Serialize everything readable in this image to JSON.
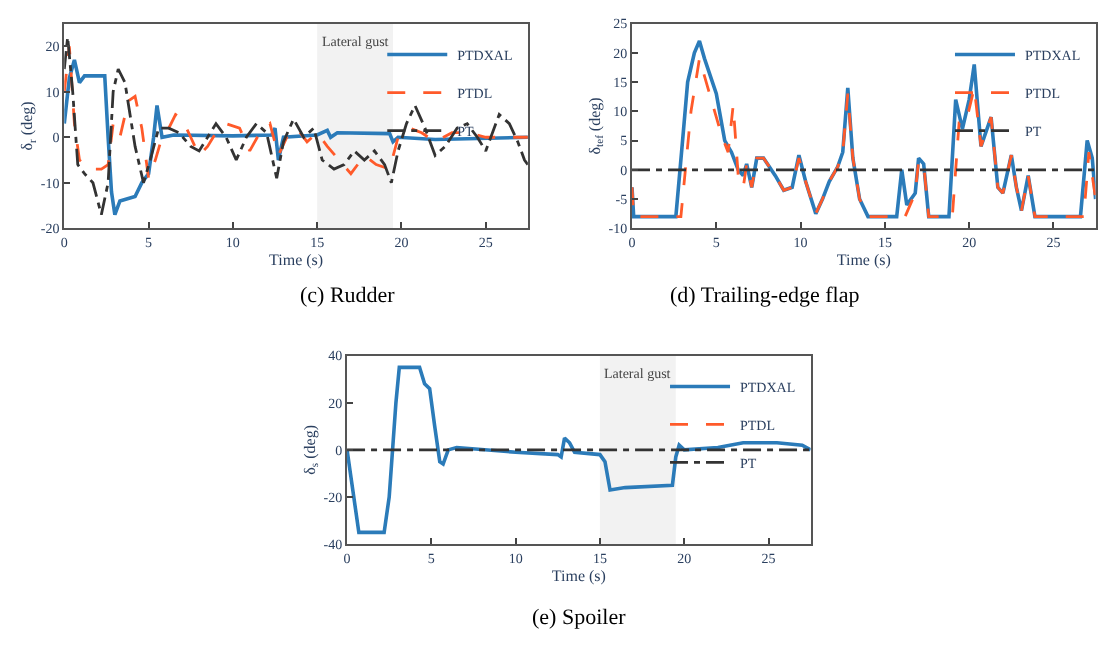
{
  "chart_data": [
    {
      "type": "line",
      "title": "(c) Rudder",
      "xlabel": "Time (s)",
      "ylabel": "δ$_{r}$ (deg)",
      "xlim": [
        0,
        27.5
      ],
      "xticks": [
        0,
        5,
        10,
        15,
        20,
        25
      ],
      "ylim": [
        -20,
        25
      ],
      "yticks": [
        -20,
        -10,
        0,
        10,
        20
      ],
      "grid": false,
      "legend": "top right",
      "bands": [
        {
          "axis": "x",
          "from": 15,
          "to": 19.5,
          "label": "Lateral gust",
          "color": "#f2f2f2"
        }
      ],
      "series": [
        {
          "name": "PTDXAL",
          "color": "#2b7bb9",
          "line_style": "solid",
          "x": [
            0,
            0.3,
            0.6,
            0.9,
            1.2,
            2.4,
            2.6,
            2.8,
            3.0,
            3.3,
            4.2,
            4.6,
            5.0,
            5.3,
            5.5,
            5.8,
            6.5,
            10,
            12.3,
            12.5,
            12.7,
            13,
            15,
            15.6,
            15.8,
            16.2,
            19.3,
            19.5,
            19.8,
            22,
            27.5
          ],
          "values": [
            3,
            13,
            17,
            12,
            13.5,
            13.5,
            0,
            -12,
            -17,
            -14,
            -13,
            -10,
            -8,
            0,
            7,
            0,
            0.5,
            0.3,
            0.5,
            2,
            -5,
            0,
            0.5,
            1.5,
            0,
            1,
            0.8,
            -1,
            0,
            -0.5,
            0
          ]
        },
        {
          "name": "PTDL",
          "color": "#ff5a2a",
          "line_style": "dashed",
          "x": [
            0,
            0.3,
            0.6,
            0.9,
            1.5,
            2.2,
            2.6,
            2.9,
            3.3,
            3.8,
            4.2,
            4.6,
            5.0,
            5.4,
            5.8,
            6.2,
            6.6,
            7.0,
            7.5,
            8,
            8.5,
            9,
            9.6,
            10.4,
            11,
            11.6,
            12.2,
            12.7,
            13.2,
            13.8,
            14.4,
            15,
            15.6,
            16.3,
            17.0,
            17.8,
            18.5,
            19.3,
            19.8,
            20.5,
            21.2,
            22,
            23,
            24,
            25,
            27.5
          ],
          "values": [
            10,
            20,
            3,
            -5,
            -7,
            -7,
            -6,
            3,
            0,
            8,
            9,
            2,
            -9,
            -5,
            0,
            2,
            5,
            4,
            0,
            -4,
            -2,
            1,
            3,
            2,
            -3,
            1,
            3,
            -4,
            0,
            2,
            -1,
            1,
            -2,
            -5,
            -8,
            -4,
            -6,
            -7,
            0,
            2,
            1,
            -1,
            1,
            1,
            0,
            0
          ]
        },
        {
          "name": "PT",
          "color": "#333333",
          "line_style": "dashdot",
          "x": [
            0,
            0.2,
            0.5,
            0.8,
            1.2,
            1.7,
            2.2,
            2.6,
            2.9,
            3.2,
            3.6,
            4.2,
            4.7,
            5.1,
            5.6,
            6.2,
            6.8,
            7.5,
            8,
            8.5,
            9,
            9.6,
            10.2,
            10.8,
            11.4,
            12.0,
            12.6,
            13.0,
            13.6,
            14.2,
            14.8,
            15.3,
            16,
            16.6,
            17.2,
            17.8,
            18.4,
            19.0,
            19.4,
            19.8,
            20.3,
            20.8,
            21.4,
            22,
            22.6,
            23.3,
            23.9,
            24.5,
            25.0,
            25.8,
            26.4,
            26.9,
            27.3,
            27.5
          ],
          "values": [
            15,
            22,
            10,
            -6,
            -8,
            -10,
            -17,
            -10,
            10,
            15,
            12,
            -2,
            -10,
            -5,
            2,
            2,
            1,
            -2,
            -3,
            0,
            3,
            0,
            -5,
            0,
            3,
            1,
            -9,
            -1,
            4,
            0,
            2,
            -5,
            -7,
            -6,
            -3,
            -5,
            -3,
            -6,
            -10,
            -3,
            3,
            7,
            2,
            -4,
            -2,
            2,
            3,
            0,
            -3,
            5,
            3,
            -1,
            -5,
            -6
          ]
        }
      ]
    },
    {
      "type": "line",
      "title": "(d) Trailing-edge flap",
      "xlabel": "Time (s)",
      "ylabel": "δ$_{tef}$ (deg)",
      "xlim": [
        0,
        27.5
      ],
      "xticks": [
        0,
        5,
        10,
        15,
        20,
        25
      ],
      "ylim": [
        -10,
        25
      ],
      "yticks": [
        -10,
        -5,
        0,
        5,
        10,
        15,
        20,
        25
      ],
      "grid": false,
      "legend": "top right",
      "series": [
        {
          "name": "PTDXAL",
          "color": "#2b7bb9",
          "line_style": "solid",
          "x": [
            0,
            0.1,
            2.6,
            3.0,
            3.3,
            3.7,
            4.0,
            4.3,
            5.0,
            5.5,
            5.9,
            6.3,
            6.6,
            6.8,
            7.1,
            7.4,
            7.8,
            8.5,
            9.0,
            9.5,
            9.9,
            10.3,
            10.9,
            11.3,
            11.7,
            12.2,
            12.5,
            12.8,
            13.1,
            13.5,
            14,
            15.7,
            16.0,
            16.3,
            16.8,
            17.0,
            17.3,
            17.6,
            18.8,
            19.2,
            19.6,
            20.0,
            20.3,
            20.7,
            21.3,
            21.7,
            22.0,
            22.5,
            22.8,
            23.1,
            23.5,
            23.9,
            26.6,
            27.0,
            27.3,
            27.5
          ],
          "values": [
            -3,
            -8,
            -8,
            5,
            15,
            20,
            22,
            19,
            13,
            5,
            3,
            0,
            -1,
            1,
            -3,
            2,
            2,
            -1,
            -3.5,
            -3,
            2.5,
            -2,
            -7.5,
            -5,
            -2,
            0.5,
            3,
            14,
            2,
            -5,
            -8,
            -8,
            0,
            -6,
            -4,
            2,
            1,
            -8,
            -8,
            12,
            7,
            12,
            18,
            4,
            9,
            -3,
            -4,
            2.5,
            -3,
            -7,
            -1,
            -8,
            -8,
            5,
            2,
            -5
          ]
        },
        {
          "name": "PTDL",
          "color": "#ff5a2a",
          "line_style": "dashed",
          "x": [
            0,
            0.1,
            2.9,
            3.5,
            4.0,
            4.5,
            5.3,
            5.7,
            6.0,
            6.3,
            6.6,
            6.8,
            7.1,
            7.4,
            7.8,
            8.5,
            9.0,
            9.5,
            9.9,
            10.3,
            10.9,
            11.3,
            11.7,
            12.2,
            12.5,
            12.8,
            13.1,
            13.5,
            14,
            16.2,
            16.5,
            16.8,
            17.0,
            17.3,
            17.6,
            19.0,
            19.4,
            19.8,
            20.3,
            20.7,
            21.3,
            21.7,
            22.0,
            22.5,
            22.8,
            23.1,
            23.5,
            23.9,
            26.8,
            27.1,
            27.5
          ],
          "values": [
            -3,
            -8,
            -8,
            10,
            19,
            14,
            6,
            3,
            11,
            -1,
            -3,
            1,
            -3,
            2,
            2,
            -1,
            -3.5,
            -3,
            2,
            -2,
            -7.5,
            -5,
            -2,
            0.5,
            3,
            13,
            2,
            -5,
            -8,
            -8,
            -6,
            -4,
            1.5,
            1,
            -8,
            -8,
            8,
            8,
            14,
            4,
            9,
            -3,
            -4,
            2.5,
            -3,
            -7,
            -1,
            -8,
            -8,
            3,
            -5
          ]
        },
        {
          "name": "PT",
          "color": "#333333",
          "line_style": "dashdot",
          "x": [
            0,
            27.5
          ],
          "values": [
            0,
            0
          ]
        }
      ]
    },
    {
      "type": "line",
      "title": "(e) Spoiler",
      "xlabel": "Time (s)",
      "ylabel": "δ$_{s}$ (deg)",
      "xlim": [
        0,
        27.5
      ],
      "xticks": [
        0,
        5,
        10,
        15,
        20,
        25
      ],
      "ylim": [
        -40,
        40
      ],
      "yticks": [
        -40,
        -20,
        0,
        20,
        40
      ],
      "grid": false,
      "legend": "top right",
      "bands": [
        {
          "axis": "x",
          "from": 15,
          "to": 19.5,
          "label": "Lateral gust",
          "color": "#f2f2f2"
        }
      ],
      "series": [
        {
          "name": "PTDXAL",
          "color": "#2b7bb9",
          "line_style": "solid",
          "x": [
            0,
            0.2,
            0.7,
            2.2,
            2.5,
            2.9,
            3.1,
            4.3,
            4.6,
            4.9,
            5.2,
            5.5,
            5.7,
            6.0,
            6.5,
            10,
            12.5,
            12.7,
            12.9,
            13.2,
            13.5,
            15.0,
            15.3,
            15.6,
            16.5,
            19.3,
            19.5,
            19.7,
            20.0,
            22.0,
            23.5,
            25.5,
            27.0,
            27.5
          ],
          "values": [
            0,
            -10,
            -35,
            -35,
            -20,
            20,
            35,
            35,
            28,
            26,
            10,
            -5,
            -6,
            0,
            1,
            -1,
            -2,
            -3,
            5,
            3,
            -1,
            -2,
            -5,
            -17,
            -16,
            -15,
            -3,
            2,
            0,
            1,
            3,
            3,
            2,
            0
          ]
        },
        {
          "name": "PTDL",
          "color": "#ff5a2a",
          "line_style": "dashed"
        },
        {
          "name": "PT",
          "color": "#333333",
          "line_style": "dashdot",
          "x": [
            0,
            27.5
          ],
          "values": [
            0,
            0
          ]
        }
      ]
    }
  ]
}
